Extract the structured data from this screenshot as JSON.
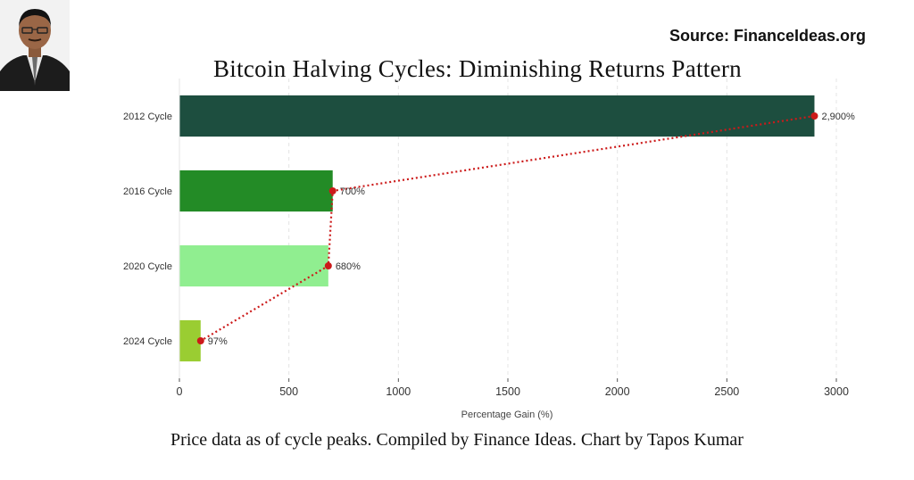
{
  "header": {
    "source": "Source: FinanceIdeas.org",
    "caption": "Price data as of cycle peaks. Compiled by Finance Ideas. Chart by Tapos Kumar"
  },
  "chart_data": {
    "type": "bar",
    "orientation": "horizontal",
    "title": "Bitcoin Halving Cycles: Diminishing Returns Pattern",
    "xlabel": "Percentage Gain (%)",
    "ylabel": "",
    "categories": [
      "2012 Cycle",
      "2016 Cycle",
      "2020 Cycle",
      "2024 Cycle"
    ],
    "values": [
      2900,
      700,
      680,
      97
    ],
    "data_labels": [
      "2,900%",
      "700%",
      "680%",
      "97%"
    ],
    "bar_colors": [
      "#1d4e3f",
      "#238b26",
      "#90ee90",
      "#9acd32"
    ],
    "xlim": [
      0,
      3000
    ],
    "xticks": [
      0,
      500,
      1000,
      1500,
      2000,
      2500,
      3000
    ],
    "grid": "vertical dashed",
    "trend_line": {
      "style": "dotted",
      "color": "#cc1a1a"
    }
  }
}
